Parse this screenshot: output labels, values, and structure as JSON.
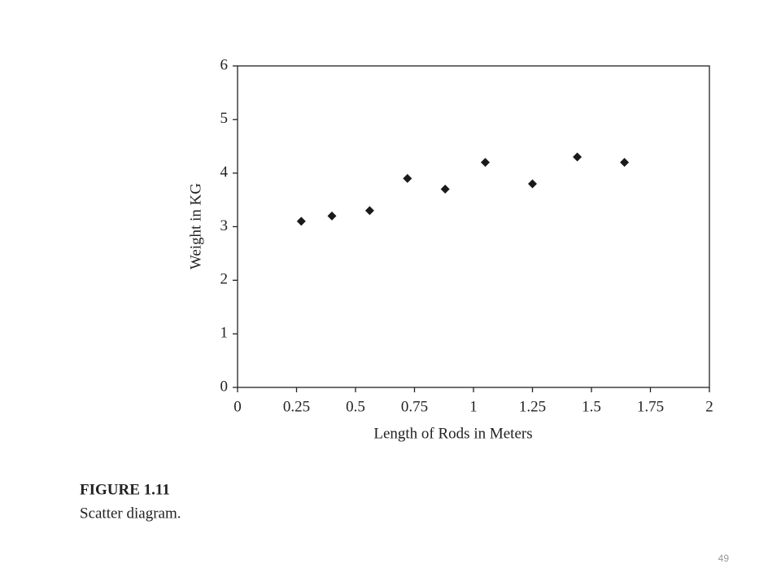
{
  "chart_data": {
    "type": "scatter",
    "x_label": "Length of Rods in Meters",
    "y_label": "Weight in KG",
    "x": [
      0.27,
      0.4,
      0.56,
      0.72,
      0.88,
      1.05,
      1.25,
      1.44,
      1.64
    ],
    "values": [
      3.1,
      3.2,
      3.3,
      3.9,
      3.7,
      4.2,
      3.8,
      4.3,
      4.2
    ],
    "color": "#1a1a1a",
    "xlim": [
      0,
      2
    ],
    "xticks": [
      0,
      0.25,
      0.5,
      0.75,
      1,
      1.25,
      1.5,
      1.75,
      2
    ],
    "ylim": [
      0,
      6
    ],
    "yticks": [
      0,
      1,
      2,
      3,
      4,
      5,
      6
    ],
    "grid": false
  },
  "caption": {
    "label": "FIGURE 1.11",
    "text": "Scatter diagram."
  },
  "page_number": 49
}
